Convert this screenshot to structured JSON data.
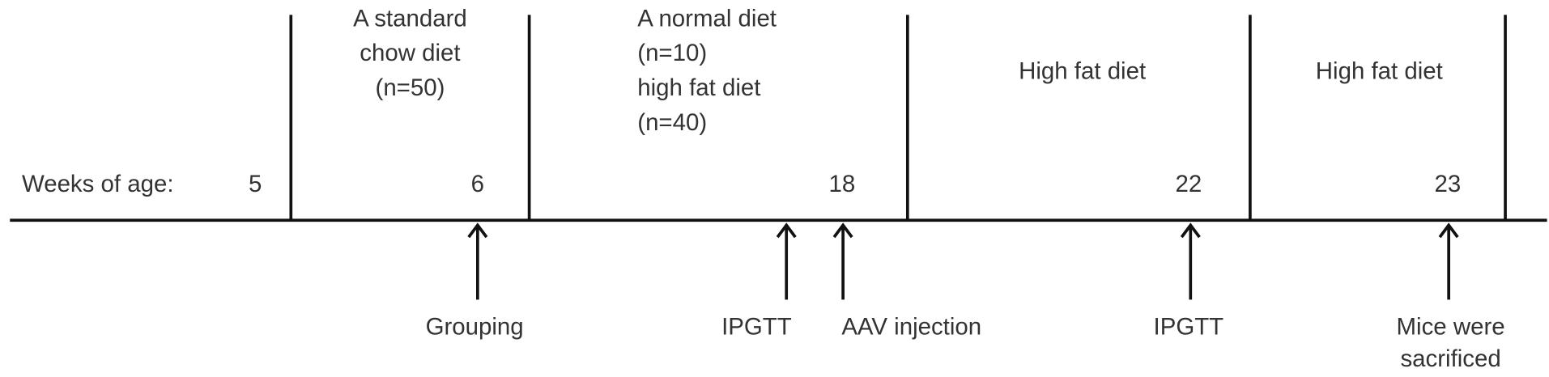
{
  "timeline": {
    "axis_label": "Weeks of age:",
    "weeks": [
      "5",
      "6",
      "18",
      "22",
      "23"
    ],
    "periods": [
      {
        "lines": [
          "A standard",
          "chow diet",
          "(n=50)"
        ]
      },
      {
        "lines": [
          "A normal diet",
          "(n=10)",
          "high fat diet",
          "(n=40)"
        ]
      },
      {
        "lines": [
          "High fat diet"
        ]
      },
      {
        "lines": [
          "High fat diet"
        ]
      }
    ],
    "events": [
      {
        "lines": [
          "Grouping"
        ]
      },
      {
        "lines": [
          "IPGTT"
        ]
      },
      {
        "lines": [
          "AAV injection"
        ]
      },
      {
        "lines": [
          "IPGTT"
        ]
      },
      {
        "lines": [
          "Mice were",
          "sacrificed"
        ]
      }
    ]
  }
}
